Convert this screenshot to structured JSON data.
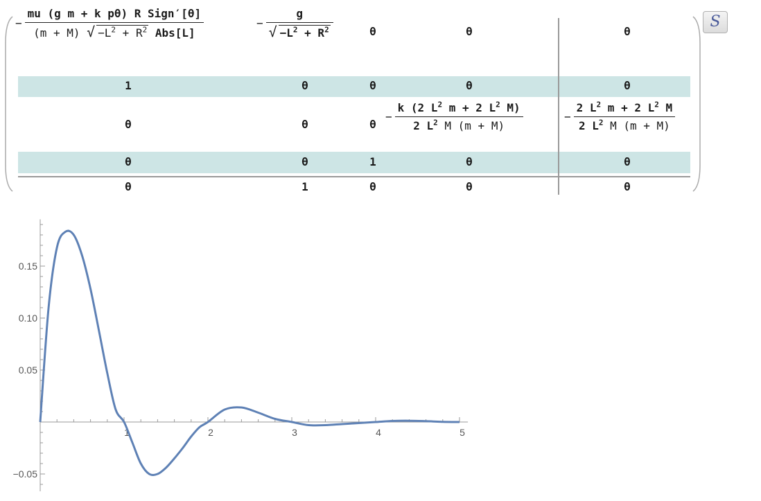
{
  "matrix": {
    "row1": {
      "c1_num": "mu (g m + k pθ) R Sign′[θ]",
      "c1_den_a": "(m + M)",
      "c1_den_b": "−L",
      "c1_den_c": " + R",
      "c1_den_d": " Abs[L]",
      "c2_num": "g",
      "c2_den_b": "−L",
      "c2_den_c": " + R",
      "c3": "θ",
      "c4": "θ",
      "c5": "θ"
    },
    "row2": [
      "1",
      "θ",
      "θ",
      "θ",
      "θ"
    ],
    "row3": {
      "c1": "θ",
      "c2": "θ",
      "c3": "θ",
      "c4_num_a": "k ",
      "c4_num_b": "(2 L",
      "c4_num_c": " m + 2 L",
      "c4_num_d": " M)",
      "c4_den_a": "2 L",
      "c4_den_b": " M (m + M)",
      "c5_num_a": "2 L",
      "c5_num_b": " m + 2 L",
      "c5_num_c": " M",
      "c5_den_a": "2 L",
      "c5_den_b": " M (m + M)"
    },
    "row4": [
      "θ",
      "θ",
      "1",
      "θ",
      "θ"
    ],
    "row5": [
      "θ",
      "1",
      "θ",
      "θ",
      "θ"
    ],
    "exp2": "2",
    "minus": "−",
    "row_highlight_color": "#cde5e5"
  },
  "s_button": {
    "label": "S",
    "icon": "stylized-s-icon"
  },
  "chart_data": {
    "type": "line",
    "title": "",
    "xlabel": "",
    "ylabel": "",
    "xlim": [
      0,
      5.1
    ],
    "ylim": [
      -0.06,
      0.195
    ],
    "x_ticks": [
      1,
      2,
      3,
      4,
      5
    ],
    "y_ticks": [
      0.15,
      0.1,
      0.05,
      -0.05
    ],
    "y_tick_labels": [
      "0.15",
      "0.10",
      "0.05",
      "−0.05"
    ],
    "x_tick_labels": [
      "1",
      "2",
      "3",
      "4",
      "5"
    ],
    "line_color": "#5e81b5",
    "series": [
      {
        "x": [
          0,
          0.1,
          0.2,
          0.3,
          0.4,
          0.5,
          0.6,
          0.7,
          0.8,
          0.9,
          1.0,
          1.1,
          1.2,
          1.3,
          1.4,
          1.5,
          1.6,
          1.7,
          1.8,
          1.9,
          2.0,
          2.2,
          2.4,
          2.6,
          2.8,
          3.0,
          3.2,
          3.4,
          3.6,
          3.8,
          4.0,
          4.2,
          4.4,
          4.6,
          4.8,
          5.0
        ],
        "y": [
          0,
          0.11,
          0.168,
          0.183,
          0.18,
          0.16,
          0.128,
          0.088,
          0.047,
          0.012,
          0,
          -0.02,
          -0.04,
          -0.05,
          -0.05,
          -0.044,
          -0.035,
          -0.025,
          -0.014,
          -0.005,
          0,
          0.012,
          0.014,
          0.009,
          0.003,
          0,
          -0.003,
          -0.003,
          -0.002,
          -0.001,
          0,
          0.001,
          0.0012,
          0.0008,
          0.0002,
          0
        ]
      }
    ]
  }
}
